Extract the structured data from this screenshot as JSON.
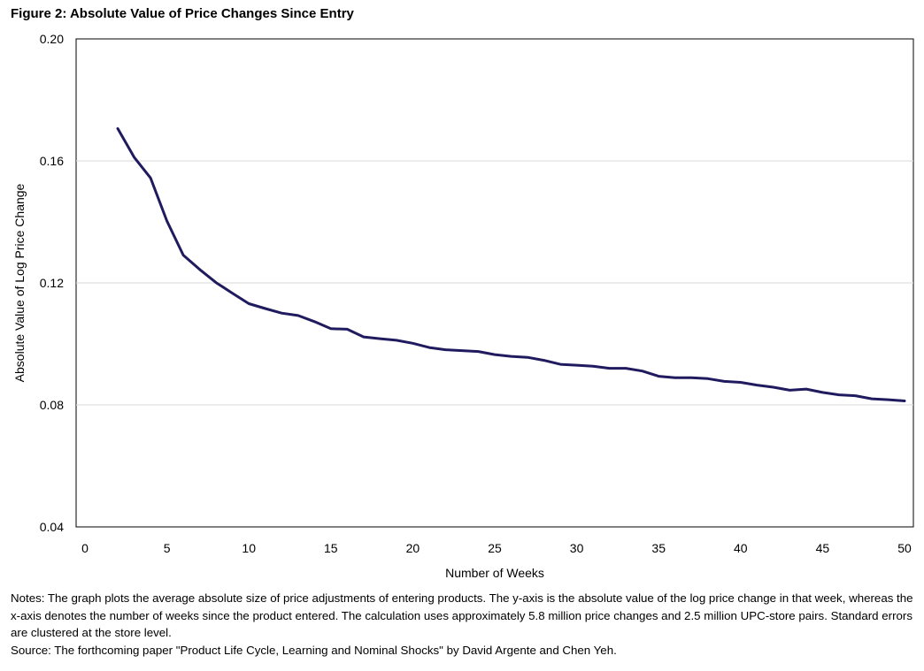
{
  "chart_data": {
    "type": "line",
    "title": "Figure 2: Absolute Value of Price Changes Since Entry",
    "xlabel": "Number of Weeks",
    "ylabel": "Absolute Value of Log Price Change",
    "xlim": [
      0,
      50
    ],
    "ylim": [
      0.04,
      0.2
    ],
    "x_ticks": [
      "0",
      "5",
      "10",
      "15",
      "20",
      "25",
      "30",
      "35",
      "40",
      "45",
      "50"
    ],
    "y_ticks": [
      "0.04",
      "0.08",
      "0.12",
      "0.16",
      "0.20"
    ],
    "grid": "horizontal",
    "series": [
      {
        "color": "#201a5e",
        "x": [
          2,
          3,
          4,
          5,
          6,
          7,
          8,
          9,
          10,
          11,
          12,
          13,
          14,
          15,
          16,
          17,
          18,
          19,
          20,
          21,
          22,
          23,
          24,
          25,
          26,
          27,
          28,
          29,
          30,
          31,
          32,
          33,
          34,
          35,
          36,
          37,
          38,
          39,
          40,
          41,
          42,
          43,
          44,
          45,
          46,
          47,
          48,
          49,
          50
        ],
        "y": [
          0.1706,
          0.1612,
          0.1544,
          0.1403,
          0.1291,
          0.1244,
          0.1201,
          0.1166,
          0.1132,
          0.1116,
          0.1101,
          0.1093,
          0.1073,
          0.105,
          0.1048,
          0.1023,
          0.1017,
          0.1012,
          0.1002,
          0.0988,
          0.0981,
          0.0978,
          0.0975,
          0.0965,
          0.0959,
          0.0956,
          0.0946,
          0.0933,
          0.093,
          0.0927,
          0.092,
          0.092,
          0.0911,
          0.0894,
          0.0889,
          0.0889,
          0.0886,
          0.0877,
          0.0874,
          0.0865,
          0.0858,
          0.0848,
          0.0852,
          0.0841,
          0.0833,
          0.083,
          0.082,
          0.0817,
          0.0813
        ]
      }
    ]
  },
  "notes": {
    "line1": "Notes: The graph plots the average absolute size of price adjustments of entering products. The y-axis is the absolute value of the log price change in that week, whereas the x-axis denotes the number of weeks since the product entered. The calculation uses approximately 5.8 million price changes and 2.5 million UPC-store pairs. Standard errors are clustered at the store level.",
    "line2": "Source: The forthcoming paper \"Product Life Cycle, Learning and Nominal Shocks\" by David Argente and Chen Yeh."
  }
}
